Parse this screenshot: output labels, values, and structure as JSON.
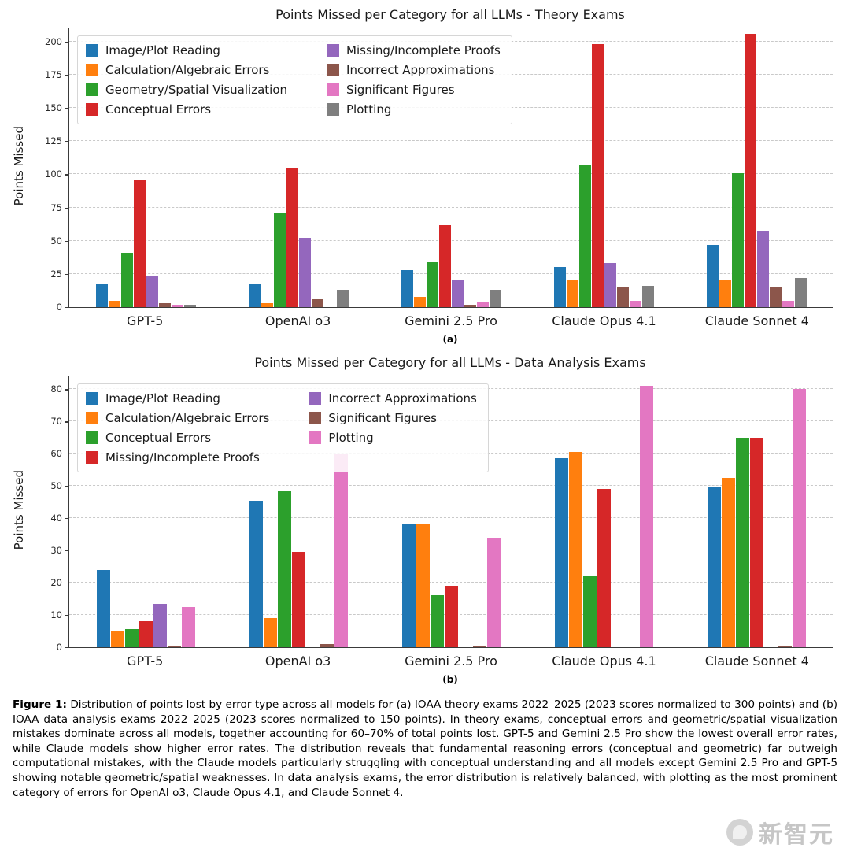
{
  "page": {
    "caption_label": "Figure 1:",
    "caption_text": "Distribution of points lost by error type across all models for (a) IOAA theory exams 2022–2025 (2023 scores normalized to 300 points) and (b) IOAA data analysis exams 2022–2025 (2023 scores normalized to 150 points). In theory exams, conceptual errors and geometric/spatial visualization mistakes dominate across all models, together accounting for 60–70% of total points lost. GPT-5 and Gemini 2.5 Pro show the lowest overall error rates, while Claude models show higher error rates. The distribution reveals that fundamental reasoning errors (conceptual and geometric) far outweigh computational mistakes, with the Claude models particularly struggling with conceptual understanding and all models except Gemini 2.5 Pro and GPT-5 showing notable geometric/spatial weaknesses. In data analysis exams, the error distribution is relatively balanced, with plotting as the most prominent category of errors for OpenAI o3, Claude Opus 4.1, and Claude Sonnet 4.",
    "watermark": "新智元"
  },
  "chart_data": [
    {
      "type": "bar",
      "title": "Points Missed per Category for all LLMs - Theory Exams",
      "xlabel": "",
      "ylabel": "Points Missed",
      "ylim": [
        0,
        210
      ],
      "yticks": [
        0,
        25,
        50,
        75,
        100,
        125,
        150,
        175,
        200
      ],
      "grid": "horizontal-dashed",
      "legend_position": "upper-left",
      "legend_columns": [
        4,
        4
      ],
      "sublabel": "(a)",
      "categories": [
        "GPT-5",
        "OpenAI o3",
        "Gemini 2.5 Pro",
        "Claude Opus 4.1",
        "Claude Sonnet 4"
      ],
      "series": [
        {
          "name": "Image/Plot Reading",
          "color": "#1f77b4",
          "values": [
            17,
            17,
            28,
            30,
            47
          ]
        },
        {
          "name": "Calculation/Algebraic Errors",
          "color": "#ff7f0e",
          "values": [
            5,
            3,
            8,
            21,
            21
          ]
        },
        {
          "name": "Geometry/Spatial Visualization",
          "color": "#2ca02c",
          "values": [
            41,
            71,
            34,
            107,
            101
          ]
        },
        {
          "name": "Conceptual Errors",
          "color": "#d62728",
          "values": [
            96,
            105,
            62,
            198,
            206
          ]
        },
        {
          "name": "Missing/Incomplete Proofs",
          "color": "#9467bd",
          "values": [
            24,
            52,
            21,
            33,
            57
          ]
        },
        {
          "name": "Incorrect Approximations",
          "color": "#8c564b",
          "values": [
            3,
            6,
            2,
            15,
            15
          ]
        },
        {
          "name": "Significant Figures",
          "color": "#e377c2",
          "values": [
            1.5,
            0,
            4,
            5,
            5
          ]
        },
        {
          "name": "Plotting",
          "color": "#7f7f7f",
          "values": [
            1,
            13,
            13,
            16,
            22
          ]
        }
      ]
    },
    {
      "type": "bar",
      "title": "Points Missed per Category for all LLMs - Data Analysis Exams",
      "xlabel": "",
      "ylabel": "Points Missed",
      "ylim": [
        0,
        84
      ],
      "yticks": [
        0,
        10,
        20,
        30,
        40,
        50,
        60,
        70,
        80
      ],
      "grid": "horizontal-dashed",
      "legend_position": "upper-left",
      "legend_columns": [
        4,
        3
      ],
      "sublabel": "(b)",
      "categories": [
        "GPT-5",
        "OpenAI o3",
        "Gemini 2.5 Pro",
        "Claude Opus 4.1",
        "Claude Sonnet 4"
      ],
      "series": [
        {
          "name": "Image/Plot Reading",
          "color": "#1f77b4",
          "values": [
            24,
            45.5,
            38,
            58.5,
            49.5
          ]
        },
        {
          "name": "Calculation/Algebraic Errors",
          "color": "#ff7f0e",
          "values": [
            5,
            9,
            38,
            60.5,
            52.5
          ]
        },
        {
          "name": "Conceptual Errors",
          "color": "#2ca02c",
          "values": [
            5.5,
            48.5,
            16,
            22,
            65
          ]
        },
        {
          "name": "Missing/Incomplete Proofs",
          "color": "#d62728",
          "values": [
            8,
            29.5,
            19,
            49,
            65
          ]
        },
        {
          "name": "Incorrect Approximations",
          "color": "#9467bd",
          "values": [
            13.5,
            0,
            0,
            0,
            0
          ]
        },
        {
          "name": "Significant Figures",
          "color": "#8c564b",
          "values": [
            0.5,
            1,
            0.5,
            0,
            0.5
          ]
        },
        {
          "name": "Plotting",
          "color": "#e377c2",
          "values": [
            12.5,
            60,
            34,
            81,
            80
          ]
        }
      ]
    }
  ]
}
